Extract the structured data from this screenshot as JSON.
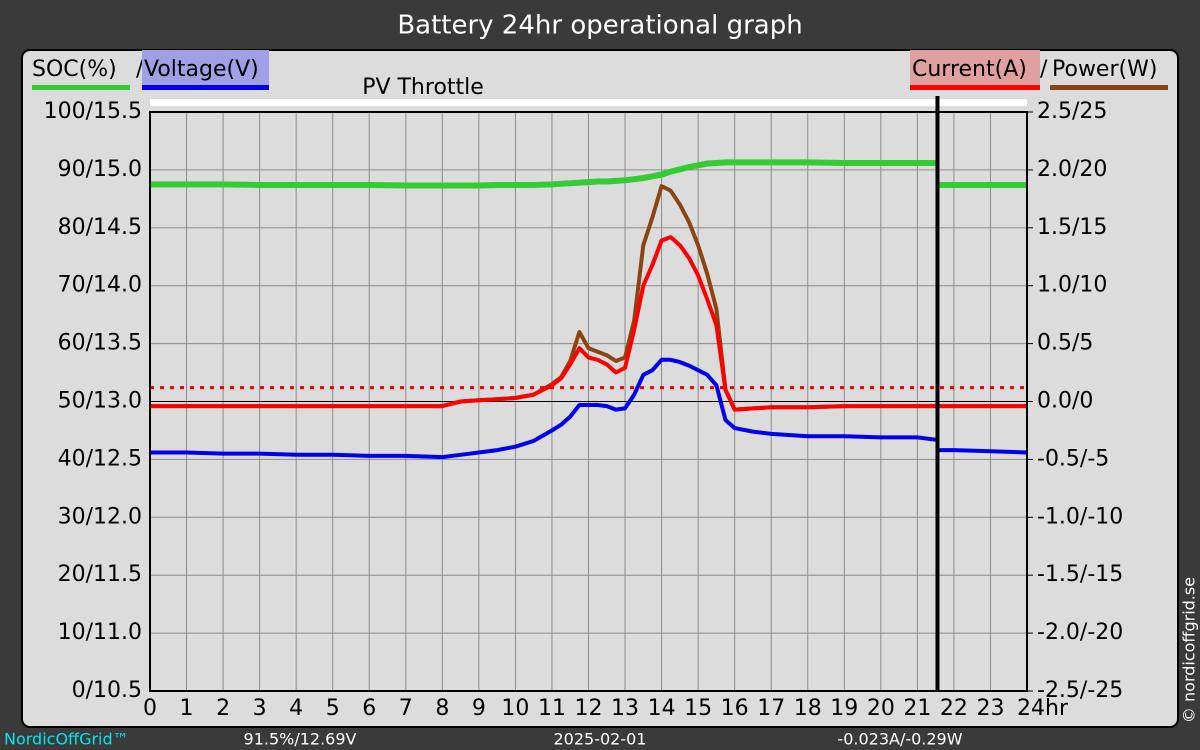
{
  "chart_data": {
    "type": "line",
    "title": "Battery 24hr operational graph",
    "legend_separator": "/",
    "annotation": "PV Throttle",
    "x": [
      0,
      1,
      2,
      3,
      4,
      5,
      6,
      7,
      8,
      8.5,
      9,
      9.5,
      10,
      10.5,
      11,
      11.25,
      11.5,
      11.75,
      12,
      12.25,
      12.5,
      12.75,
      13,
      13.25,
      13.5,
      13.75,
      14,
      14.25,
      14.5,
      14.75,
      15,
      15.25,
      15.5,
      15.75,
      16,
      16.5,
      17,
      18,
      19,
      20,
      21,
      21.5,
      21.55,
      21.6,
      22,
      23,
      24
    ],
    "xlim": [
      0,
      24
    ],
    "xticks": [
      0,
      1,
      2,
      3,
      4,
      5,
      6,
      7,
      8,
      9,
      10,
      11,
      12,
      13,
      14,
      15,
      16,
      17,
      18,
      19,
      20,
      21,
      22,
      23,
      {
        "value": 24,
        "label": "24hr"
      }
    ],
    "ylim": [
      0,
      100
    ],
    "ylim_voltage": [
      10.5,
      15.5
    ],
    "yticks": [
      {
        "value": 0,
        "label": "0/10.5"
      },
      {
        "value": 10,
        "label": "10/11.0"
      },
      {
        "value": 20,
        "label": "20/11.5"
      },
      {
        "value": 30,
        "label": "30/12.0"
      },
      {
        "value": 40,
        "label": "40/12.5"
      },
      {
        "value": 50,
        "label": "50/13.0"
      },
      {
        "value": 60,
        "label": "60/13.5"
      },
      {
        "value": 70,
        "label": "70/14.0"
      },
      {
        "value": 80,
        "label": "80/14.5"
      },
      {
        "value": 90,
        "label": "90/15.0"
      },
      {
        "value": 100,
        "label": "100/15.5"
      }
    ],
    "y2lim": [
      -2.5,
      2.5
    ],
    "y2lim_power": [
      -25,
      25
    ],
    "y2ticks": [
      {
        "value": -2.5,
        "label": "-2.5/-25"
      },
      {
        "value": -2.0,
        "label": "-2.0/-20"
      },
      {
        "value": -1.5,
        "label": "-1.5/-15"
      },
      {
        "value": -1.0,
        "label": "-1.0/-10"
      },
      {
        "value": -0.5,
        "label": "-0.5/-5"
      },
      {
        "value": 0,
        "label": "0.0/0"
      },
      {
        "value": 0.5,
        "label": "0.5/5"
      },
      {
        "value": 1.0,
        "label": "1.0/10"
      },
      {
        "value": 1.5,
        "label": "1.5/15"
      },
      {
        "value": 2.0,
        "label": "2.0/20"
      },
      {
        "value": 2.5,
        "label": "2.5/25"
      }
    ],
    "grid": true,
    "series": [
      {
        "name": "SOC(%)",
        "color": "#33cc33",
        "axis": "y",
        "values": [
          87.5,
          87.5,
          87.5,
          87.4,
          87.4,
          87.4,
          87.4,
          87.3,
          87.3,
          87.3,
          87.3,
          87.4,
          87.4,
          87.4,
          87.5,
          87.6,
          87.7,
          87.8,
          87.9,
          88.0,
          88.0,
          88.1,
          88.2,
          88.4,
          88.6,
          88.9,
          89.2,
          89.7,
          90.1,
          90.5,
          90.8,
          91.1,
          91.2,
          91.3,
          91.3,
          91.3,
          91.3,
          91.3,
          91.2,
          91.2,
          91.2,
          91.2,
          null,
          87.4,
          87.4,
          87.4,
          87.4
        ]
      },
      {
        "name": "Voltage(V)",
        "color": "#0000ee",
        "axis": "y_voltage",
        "highlight": "#a0a0e6",
        "values": [
          12.56,
          12.56,
          12.55,
          12.55,
          12.54,
          12.54,
          12.53,
          12.53,
          12.52,
          12.54,
          12.56,
          12.58,
          12.61,
          12.66,
          12.75,
          12.8,
          12.87,
          12.97,
          12.97,
          12.97,
          12.96,
          12.93,
          12.94,
          13.06,
          13.23,
          13.27,
          13.36,
          13.36,
          13.34,
          13.31,
          13.27,
          13.23,
          13.14,
          12.84,
          12.77,
          12.74,
          12.72,
          12.7,
          12.7,
          12.69,
          12.69,
          12.67,
          null,
          12.58,
          12.58,
          12.57,
          12.56
        ]
      },
      {
        "name": "Current(A)",
        "color": "#ff0000",
        "axis": "y2",
        "highlight": "#e0a0a0",
        "values": [
          -0.04,
          -0.04,
          -0.04,
          -0.04,
          -0.04,
          -0.04,
          -0.04,
          -0.04,
          -0.04,
          0.0,
          0.01,
          0.02,
          0.03,
          0.06,
          0.14,
          0.2,
          0.32,
          0.46,
          0.38,
          0.36,
          0.32,
          0.25,
          0.29,
          0.62,
          1.0,
          1.18,
          1.39,
          1.42,
          1.35,
          1.24,
          1.09,
          0.88,
          0.66,
          0.1,
          -0.07,
          -0.06,
          -0.05,
          -0.05,
          -0.04,
          -0.04,
          -0.04,
          -0.04,
          -0.04,
          -0.04,
          -0.04,
          -0.04,
          -0.04
        ]
      },
      {
        "name": "Power(W)",
        "color": "#8b4513",
        "axis": "y2_power",
        "values": [
          -0.4,
          -0.4,
          -0.4,
          -0.4,
          -0.4,
          -0.4,
          -0.4,
          -0.4,
          -0.4,
          0.0,
          0.1,
          0.2,
          0.3,
          0.6,
          1.5,
          2.1,
          3.5,
          6.0,
          4.6,
          4.3,
          4.0,
          3.5,
          3.8,
          7.0,
          13.5,
          15.9,
          18.6,
          18.2,
          17.0,
          15.5,
          13.5,
          11.0,
          8.0,
          1.0,
          -0.7,
          -0.6,
          -0.5,
          -0.5,
          -0.4,
          -0.4,
          -0.4,
          -0.4,
          -0.4,
          -0.4,
          -0.4,
          -0.4,
          -0.4
        ]
      }
    ],
    "threshold": {
      "value": 0.12,
      "axis": "y2",
      "color": "#ee0000"
    },
    "cursor_x": 21.55,
    "footer": {
      "brand": "NordicOffGrid™",
      "latest": "91.5%/12.69V",
      "date": "2025-02-01",
      "latest_flow": "-0.023A/-0.29W",
      "copyright": "© nordicoffgrid.se"
    }
  }
}
